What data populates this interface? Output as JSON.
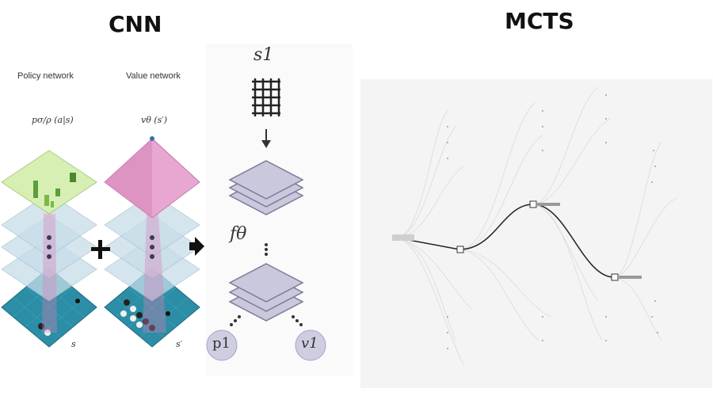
{
  "headings": {
    "cnn": "CNN",
    "mcts": "MCTS"
  },
  "networks": {
    "policy": {
      "label": "Policy network",
      "output": "pσ/ρ (a|s)",
      "input": "s"
    },
    "value": {
      "label": "Value network",
      "output": "vθ (s′)",
      "input": "s′"
    }
  },
  "operators": {
    "plus": "+",
    "arrow": "➜"
  },
  "unified_net": {
    "state": "s1",
    "function": "fθ",
    "policy_out": "p1",
    "value_out": "v1"
  },
  "colors": {
    "policy_top": "#d8efb4",
    "value_top": "#e7a7d0",
    "hidden_layer": "#c7dde9",
    "board": "#2b8ea6",
    "net_block": "#c9c8dc",
    "net_stroke": "#7c7b99",
    "node": "#cfcde2"
  },
  "icons": [
    "plus-icon",
    "arrow-right-icon",
    "down-arrow-icon",
    "grid-icon"
  ]
}
